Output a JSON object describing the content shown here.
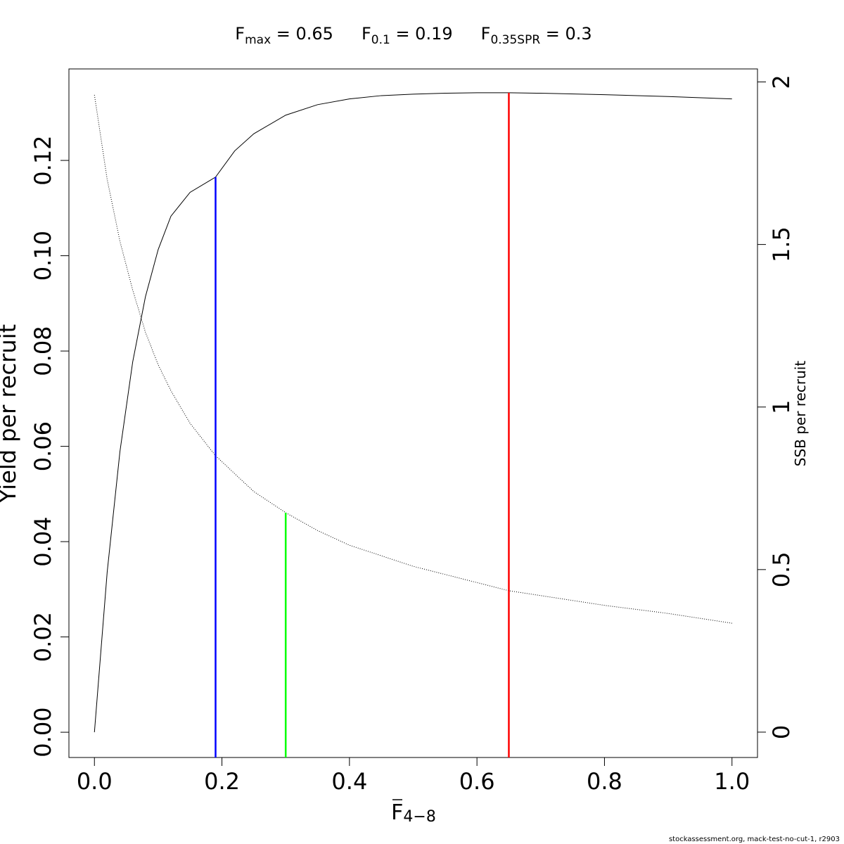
{
  "chart_data": {
    "type": "line",
    "title_parts": [
      {
        "main": "F",
        "sub": "max",
        "rest": " = 0.65"
      },
      {
        "main": "F",
        "sub": "0.1",
        "rest": " = 0.19"
      },
      {
        "main": "F",
        "sub": "0.35SPR",
        "rest": " = 0.3"
      }
    ],
    "xlabel": {
      "main": "F",
      "sub": "4−8"
    },
    "ylabel_left": "Yield per recruit",
    "ylabel_right": "SSB per recruit",
    "xlim": [
      -0.04,
      1.04
    ],
    "ylim_left": [
      -0.0053,
      0.1392
    ],
    "ylim_right": [
      -0.078,
      2.04
    ],
    "x_ticks": [
      0.0,
      0.2,
      0.4,
      0.6,
      0.8,
      1.0
    ],
    "x_tick_labels": [
      "0.0",
      "0.2",
      "0.4",
      "0.6",
      "0.8",
      "1.0"
    ],
    "y_left_ticks": [
      0.0,
      0.02,
      0.04,
      0.06,
      0.08,
      0.1,
      0.12
    ],
    "y_left_tick_labels": [
      "0.00",
      "0.02",
      "0.04",
      "0.06",
      "0.08",
      "0.10",
      "0.12"
    ],
    "y_right_ticks": [
      0,
      0.5,
      1,
      1.5,
      2
    ],
    "y_right_tick_labels": [
      "0",
      "0.5",
      "1",
      "1.5",
      "2"
    ],
    "series": [
      {
        "axis": "left",
        "style": "solid",
        "x": [
          0.0,
          0.02,
          0.04,
          0.06,
          0.08,
          0.1,
          0.12,
          0.15,
          0.19,
          0.22,
          0.25,
          0.3,
          0.35,
          0.4,
          0.45,
          0.5,
          0.55,
          0.6,
          0.65,
          0.7,
          0.8,
          0.9,
          1.0
        ],
        "y": [
          0.0,
          0.0336,
          0.0589,
          0.0777,
          0.0914,
          0.1013,
          0.1083,
          0.1133,
          0.1165,
          0.122,
          0.1256,
          0.1295,
          0.1317,
          0.1329,
          0.1336,
          0.1339,
          0.1341,
          0.1342,
          0.1342,
          0.1341,
          0.1338,
          0.1334,
          0.1329
        ]
      },
      {
        "axis": "right",
        "style": "dotted",
        "x": [
          0.0,
          0.02,
          0.04,
          0.06,
          0.08,
          0.1,
          0.12,
          0.15,
          0.19,
          0.25,
          0.3,
          0.35,
          0.4,
          0.5,
          0.6,
          0.65,
          0.7,
          0.8,
          0.9,
          1.0
        ],
        "y": [
          1.96,
          1.7,
          1.51,
          1.36,
          1.23,
          1.13,
          1.05,
          0.95,
          0.85,
          0.74,
          0.675,
          0.62,
          0.575,
          0.51,
          0.46,
          0.435,
          0.42,
          0.39,
          0.365,
          0.335
        ]
      }
    ],
    "reference_lines": [
      {
        "x": 0.19,
        "y_top": 0.1165,
        "axis": "left",
        "color": "#0000ff"
      },
      {
        "x": 0.3,
        "y_top": 0.675,
        "axis": "right",
        "color": "#00ff00"
      },
      {
        "x": 0.65,
        "y_top": 0.1342,
        "axis": "left",
        "color": "#ff0000"
      }
    ]
  },
  "footer": "stockassessment.org, mack-test-no-cut-1, r2903"
}
